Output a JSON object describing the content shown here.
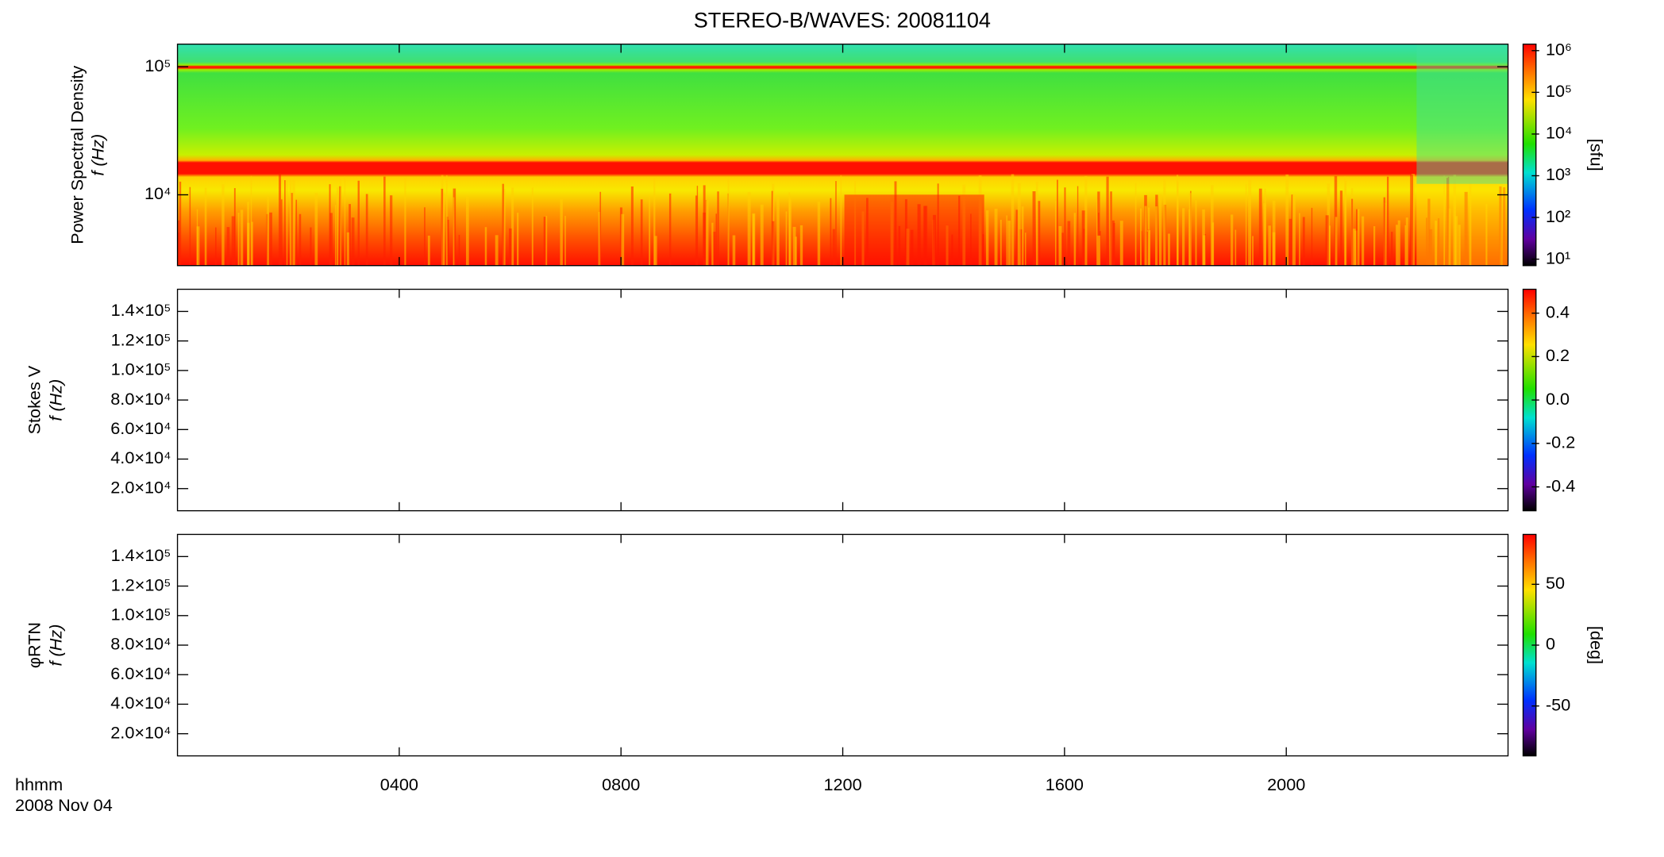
{
  "title": "STEREO-B/WAVES: 20081104",
  "time_axis": {
    "xlim": [
      0,
      24
    ],
    "xticks": [
      {
        "value": 4,
        "label": "0400"
      },
      {
        "value": 8,
        "label": "0800"
      },
      {
        "value": 12,
        "label": "1200"
      },
      {
        "value": 16,
        "label": "1600"
      },
      {
        "value": 20,
        "label": "2000"
      }
    ],
    "label": [
      "hhmm",
      "2008 Nov 04"
    ]
  },
  "chart_data": [
    {
      "type": "heatmap",
      "ylabel": [
        "Power Spectral Density",
        "f (Hz)"
      ],
      "log": true,
      "ylim": [
        2800,
        150000
      ],
      "yticks": [
        {
          "value": 10000,
          "label": "10⁴"
        },
        {
          "value": 100000,
          "label": "10⁵"
        }
      ],
      "colorbar": {
        "lim": [
          7,
          1430000
        ],
        "log": true,
        "label": "[sfu]",
        "ticks": [
          {
            "value": 10,
            "label": "10¹"
          },
          {
            "value": 100,
            "label": "10²"
          },
          {
            "value": 1000,
            "label": "10³"
          },
          {
            "value": 10000,
            "label": "10⁴"
          },
          {
            "value": 100000,
            "label": "10⁵"
          },
          {
            "value": 1000000,
            "label": "10⁶"
          }
        ]
      }
    },
    {
      "type": "heatmap",
      "ylabel": [
        "Stokes V",
        "f (Hz)"
      ],
      "log": false,
      "ylim": [
        5000,
        155000
      ],
      "yticks": [
        {
          "value": 20000,
          "label": "2.0×10⁴"
        },
        {
          "value": 40000,
          "label": "4.0×10⁴"
        },
        {
          "value": 60000,
          "label": "6.0×10⁴"
        },
        {
          "value": 80000,
          "label": "8.0×10⁴"
        },
        {
          "value": 100000,
          "label": "1.0×10⁵"
        },
        {
          "value": 120000,
          "label": "1.2×10⁵"
        },
        {
          "value": 140000,
          "label": "1.4×10⁵"
        }
      ],
      "colorbar": {
        "lim": [
          -0.51,
          0.51
        ],
        "log": false,
        "ticks": [
          -0.4,
          -0.2,
          {
            "value": 0,
            "label": "0.0"
          },
          0.2,
          0.4
        ]
      }
    },
    {
      "type": "heatmap",
      "ylabel": [
        "φRTN",
        "f (Hz)"
      ],
      "log": false,
      "ylim": [
        5000,
        155000
      ],
      "yticks": [
        {
          "value": 20000,
          "label": "2.0×10⁴"
        },
        {
          "value": 40000,
          "label": "4.0×10⁴"
        },
        {
          "value": 60000,
          "label": "6.0×10⁴"
        },
        {
          "value": 80000,
          "label": "8.0×10⁴"
        },
        {
          "value": 100000,
          "label": "1.0×10⁵"
        },
        {
          "value": 120000,
          "label": "1.2×10⁵"
        },
        {
          "value": 140000,
          "label": "1.4×10⁵"
        }
      ],
      "colorbar": {
        "lim": [
          -91,
          91
        ],
        "log": false,
        "label": "[deg]",
        "ticks": [
          -50,
          0,
          50
        ]
      }
    }
  ]
}
